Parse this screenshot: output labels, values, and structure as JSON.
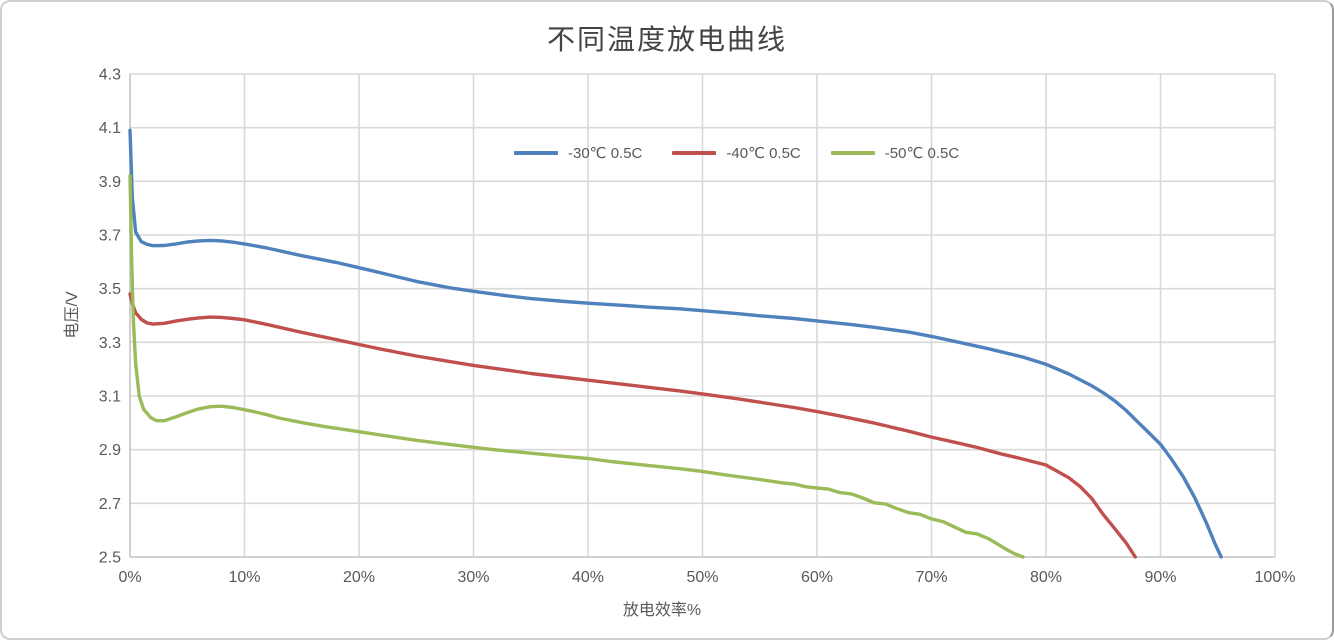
{
  "chart_data": {
    "type": "line",
    "title": "不同温度放电曲线",
    "xlabel": "放电效率%",
    "ylabel": "电压/V",
    "xlim": [
      0,
      100
    ],
    "ylim": [
      2.5,
      4.3
    ],
    "x_tick_step": 10,
    "y_tick_step": 0.2,
    "x_tick_labels": [
      "0%",
      "10%",
      "20%",
      "30%",
      "40%",
      "50%",
      "60%",
      "70%",
      "80%",
      "90%",
      "100%"
    ],
    "y_tick_labels": [
      "2.5",
      "2.7",
      "2.9",
      "3.1",
      "3.3",
      "3.5",
      "3.7",
      "3.9",
      "4.1",
      "4.3"
    ],
    "grid": true,
    "legend_position": "top-center-inside",
    "colors": {
      "gridline": "#d9d9d9",
      "axis_line": "#c4c4c4",
      "tick_text": "#595959",
      "title_text": "#444444"
    },
    "series": [
      {
        "name": "-30℃ 0.5C",
        "color": "#4F81BD",
        "points": [
          [
            0,
            4.09
          ],
          [
            0.2,
            3.84
          ],
          [
            0.5,
            3.71
          ],
          [
            1,
            3.675
          ],
          [
            1.5,
            3.665
          ],
          [
            2,
            3.66
          ],
          [
            3,
            3.661
          ],
          [
            4,
            3.667
          ],
          [
            5,
            3.674
          ],
          [
            6,
            3.678
          ],
          [
            7,
            3.68
          ],
          [
            8,
            3.678
          ],
          [
            9,
            3.673
          ],
          [
            10,
            3.667
          ],
          [
            12,
            3.651
          ],
          [
            15,
            3.623
          ],
          [
            18,
            3.598
          ],
          [
            20,
            3.578
          ],
          [
            22,
            3.558
          ],
          [
            25,
            3.527
          ],
          [
            28,
            3.503
          ],
          [
            30,
            3.49
          ],
          [
            33,
            3.473
          ],
          [
            35,
            3.463
          ],
          [
            38,
            3.452
          ],
          [
            40,
            3.446
          ],
          [
            43,
            3.438
          ],
          [
            45,
            3.432
          ],
          [
            48,
            3.425
          ],
          [
            50,
            3.418
          ],
          [
            53,
            3.407
          ],
          [
            55,
            3.399
          ],
          [
            58,
            3.389
          ],
          [
            60,
            3.38
          ],
          [
            63,
            3.366
          ],
          [
            65,
            3.356
          ],
          [
            68,
            3.338
          ],
          [
            70,
            3.322
          ],
          [
            72,
            3.304
          ],
          [
            75,
            3.276
          ],
          [
            78,
            3.245
          ],
          [
            80,
            3.218
          ],
          [
            82,
            3.182
          ],
          [
            84,
            3.138
          ],
          [
            85,
            3.112
          ],
          [
            86,
            3.082
          ],
          [
            87,
            3.046
          ],
          [
            88,
            3.004
          ],
          [
            89,
            2.962
          ],
          [
            90,
            2.92
          ],
          [
            91,
            2.862
          ],
          [
            92,
            2.798
          ],
          [
            93,
            2.72
          ],
          [
            94,
            2.628
          ],
          [
            94.8,
            2.545
          ],
          [
            95.3,
            2.5
          ]
        ]
      },
      {
        "name": "-40℃ 0.5C",
        "color": "#C0504D",
        "points": [
          [
            0,
            3.48
          ],
          [
            0.2,
            3.445
          ],
          [
            0.5,
            3.41
          ],
          [
            1,
            3.385
          ],
          [
            1.5,
            3.372
          ],
          [
            2,
            3.368
          ],
          [
            3,
            3.371
          ],
          [
            4,
            3.379
          ],
          [
            5,
            3.386
          ],
          [
            6,
            3.391
          ],
          [
            7,
            3.394
          ],
          [
            8,
            3.393
          ],
          [
            9,
            3.389
          ],
          [
            10,
            3.384
          ],
          [
            12,
            3.366
          ],
          [
            15,
            3.337
          ],
          [
            18,
            3.31
          ],
          [
            20,
            3.292
          ],
          [
            22,
            3.274
          ],
          [
            25,
            3.249
          ],
          [
            28,
            3.228
          ],
          [
            30,
            3.214
          ],
          [
            33,
            3.196
          ],
          [
            35,
            3.184
          ],
          [
            38,
            3.169
          ],
          [
            40,
            3.159
          ],
          [
            43,
            3.144
          ],
          [
            45,
            3.134
          ],
          [
            48,
            3.119
          ],
          [
            50,
            3.108
          ],
          [
            53,
            3.09
          ],
          [
            55,
            3.077
          ],
          [
            58,
            3.057
          ],
          [
            60,
            3.042
          ],
          [
            62,
            3.026
          ],
          [
            65,
            2.999
          ],
          [
            68,
            2.969
          ],
          [
            70,
            2.947
          ],
          [
            72,
            2.928
          ],
          [
            74,
            2.908
          ],
          [
            76,
            2.885
          ],
          [
            78,
            2.865
          ],
          [
            80,
            2.843
          ],
          [
            82,
            2.795
          ],
          [
            83,
            2.762
          ],
          [
            84,
            2.718
          ],
          [
            85,
            2.658
          ],
          [
            86,
            2.606
          ],
          [
            87,
            2.552
          ],
          [
            87.8,
            2.5
          ]
        ]
      },
      {
        "name": "-50℃ 0.5C",
        "color": "#9BBB59",
        "points": [
          [
            0,
            3.92
          ],
          [
            0.15,
            3.6
          ],
          [
            0.3,
            3.38
          ],
          [
            0.5,
            3.22
          ],
          [
            0.8,
            3.1
          ],
          [
            1.2,
            3.05
          ],
          [
            1.8,
            3.02
          ],
          [
            2.3,
            3.008
          ],
          [
            3,
            3.008
          ],
          [
            4,
            3.022
          ],
          [
            5,
            3.038
          ],
          [
            6,
            3.052
          ],
          [
            7,
            3.06
          ],
          [
            8,
            3.062
          ],
          [
            9,
            3.057
          ],
          [
            10,
            3.049
          ],
          [
            11,
            3.04
          ],
          [
            12,
            3.03
          ],
          [
            13,
            3.018
          ],
          [
            15,
            3.001
          ],
          [
            17,
            2.986
          ],
          [
            20,
            2.967
          ],
          [
            22,
            2.954
          ],
          [
            25,
            2.935
          ],
          [
            28,
            2.919
          ],
          [
            30,
            2.909
          ],
          [
            32,
            2.899
          ],
          [
            35,
            2.887
          ],
          [
            38,
            2.875
          ],
          [
            40,
            2.867
          ],
          [
            42,
            2.856
          ],
          [
            45,
            2.842
          ],
          [
            48,
            2.829
          ],
          [
            50,
            2.819
          ],
          [
            52,
            2.806
          ],
          [
            55,
            2.789
          ],
          [
            57,
            2.776
          ],
          [
            58,
            2.772
          ],
          [
            59,
            2.762
          ],
          [
            60,
            2.757
          ],
          [
            61,
            2.753
          ],
          [
            62,
            2.74
          ],
          [
            63,
            2.735
          ],
          [
            64,
            2.72
          ],
          [
            65,
            2.702
          ],
          [
            66,
            2.697
          ],
          [
            67,
            2.68
          ],
          [
            68,
            2.665
          ],
          [
            69,
            2.659
          ],
          [
            70,
            2.642
          ],
          [
            71,
            2.632
          ],
          [
            72,
            2.612
          ],
          [
            73,
            2.592
          ],
          [
            74,
            2.586
          ],
          [
            75,
            2.568
          ],
          [
            76,
            2.542
          ],
          [
            76.6,
            2.527
          ],
          [
            77.2,
            2.513
          ],
          [
            78,
            2.5
          ]
        ]
      }
    ]
  }
}
